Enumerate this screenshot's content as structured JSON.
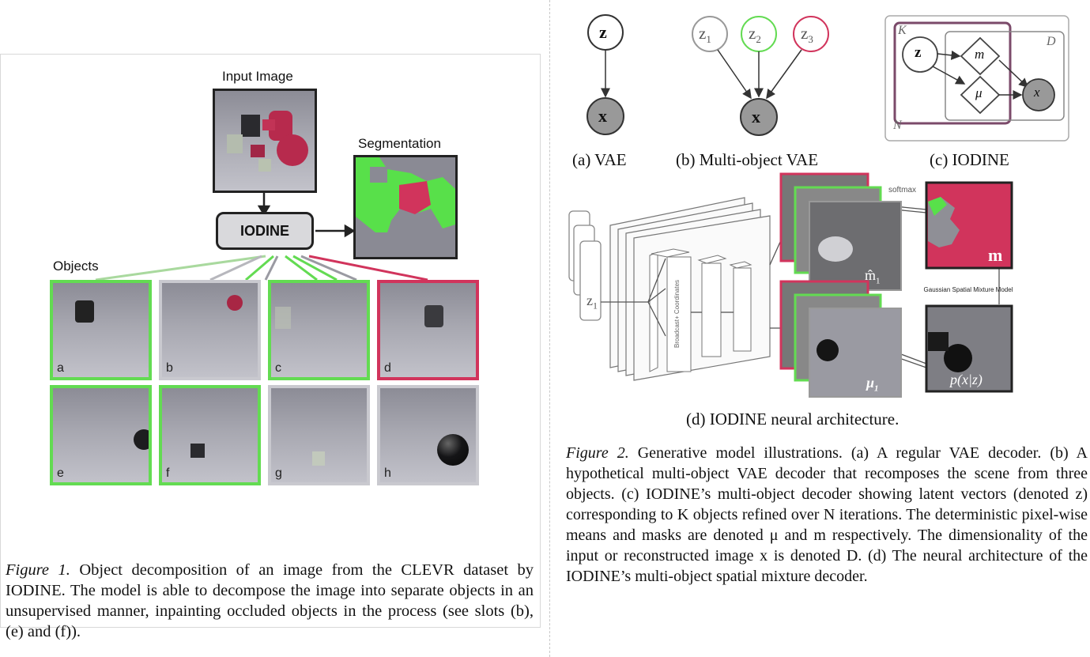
{
  "figure1": {
    "input_label": "Input Image",
    "model_label": "IODINE",
    "segmentation_label": "Segmentation",
    "objects_label": "Objects",
    "slots": [
      "a",
      "b",
      "c",
      "d",
      "e",
      "f",
      "g",
      "h"
    ],
    "caption_prefix": "Figure 1.",
    "caption_text": " Object decomposition of an image from the CLEVR dataset by IODINE. The model is able to decompose the image into separate objects in an unsupervised manner, inpainting occluded objects in the process (see slots (b), (e) and (f))."
  },
  "figure2": {
    "node_z": "z",
    "node_x": "x",
    "node_z1": "z",
    "node_z2": "z",
    "node_z3": "z",
    "sub1": "1",
    "sub2": "2",
    "sub3": "3",
    "plate_K": "K",
    "plate_D": "D",
    "plate_N": "N",
    "node_m": "m",
    "node_mu": "μ",
    "node_x_italic": "x",
    "sub_a": "(a) VAE",
    "sub_b": "(b) Multi-object VAE",
    "sub_c": "(c) IODINE",
    "softmax_label": "softmax",
    "broadcast_label": "Broadcast+ Coordinates",
    "mask_label": "m",
    "m1_label": "m̂",
    "mu1_label": "μ",
    "gsm_label": "Gaussian Spatial Mixture Model",
    "pxz_label": "p(x|z)",
    "sub_d": "(d) IODINE neural architecture.",
    "caption_prefix": "Figure 2.",
    "caption_text": " Generative model illustrations. (a) A regular VAE decoder. (b) A hypothetical multi-object VAE decoder that recomposes the scene from three objects. (c) IODINE’s multi-object decoder showing latent vectors (denoted z) corresponding to K objects refined over N iterations. The deterministic pixel-wise means and masks are denoted μ and m respectively. The dimensionality of the input or reconstructed image x is denoted D. (d) The neural architecture of the IODINE’s multi-object spatial mixture decoder."
  },
  "colors": {
    "green": "#63db52",
    "red": "#d1345c",
    "gray": "#8a8a8f"
  }
}
